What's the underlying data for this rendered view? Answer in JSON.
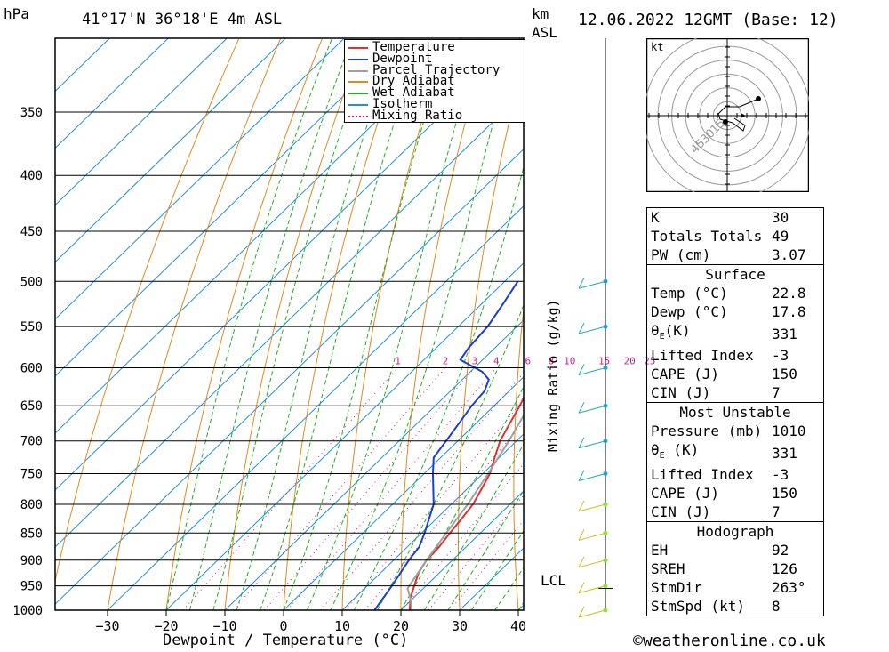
{
  "header": {
    "hpa_label": "hPa",
    "location": "41°17'N 36°18'E 4m ASL",
    "km_label": "km",
    "asl_label": "ASL",
    "datetime": "12.06.2022 12GMT (Base: 12)"
  },
  "footer": {
    "xlabel": "Dewpoint / Temperature (°C)",
    "copyright": "©weatheronline.co.uk",
    "lcl_label": "LCL",
    "mixing_ratio_axis": "Mixing Ratio (g/kg)"
  },
  "chart_data": {
    "type": "line",
    "title": "Skew-T log-P diagram",
    "xlabel": "Dewpoint / Temperature (°C)",
    "ylabel": "hPa",
    "pressure_levels": [
      350,
      400,
      450,
      500,
      550,
      600,
      650,
      700,
      750,
      800,
      850,
      900,
      950,
      1000
    ],
    "x_ticks": [
      -30,
      -20,
      -10,
      0,
      10,
      20,
      30,
      40
    ],
    "legend": [
      {
        "name": "Temperature",
        "color": "#e03030",
        "style": "solid"
      },
      {
        "name": "Dewpoint",
        "color": "#1a3fd0",
        "style": "solid"
      },
      {
        "name": "Parcel Trajectory",
        "color": "#a0a0a0",
        "style": "solid"
      },
      {
        "name": "Dry Adiabat",
        "color": "#e08a20",
        "style": "solid"
      },
      {
        "name": "Wet Adiabat",
        "color": "#20b020",
        "style": "solid"
      },
      {
        "name": "Isotherm",
        "color": "#2090e0",
        "style": "solid"
      },
      {
        "name": "Mixing Ratio",
        "color": "#d02090",
        "style": "dotted"
      }
    ],
    "mixing_ratio_labels": [
      "1",
      "2",
      "3",
      "4",
      "6",
      "8",
      "10",
      "15",
      "20",
      "25"
    ],
    "mixing_ratio_values": [
      1,
      2,
      3,
      4,
      6,
      8,
      10,
      15,
      20,
      25
    ],
    "series": [
      {
        "name": "Temperature",
        "points": [
          [
            1010,
            22.8
          ],
          [
            1000,
            21.5
          ],
          [
            975,
            19.5
          ],
          [
            950,
            18.0
          ],
          [
            925,
            16.5
          ],
          [
            900,
            15.6
          ],
          [
            875,
            15.4
          ],
          [
            850,
            14.8
          ],
          [
            825,
            14.3
          ],
          [
            800,
            13.7
          ],
          [
            775,
            12.5
          ],
          [
            750,
            11.2
          ],
          [
            725,
            9.2
          ],
          [
            700,
            7.2
          ],
          [
            675,
            5.8
          ],
          [
            650,
            4.4
          ],
          [
            630,
            3.0
          ],
          [
            620,
            2.4
          ],
          [
            610,
            4.5
          ],
          [
            600,
            3.5
          ],
          [
            575,
            0.8
          ],
          [
            550,
            -2.2
          ],
          [
            525,
            -5.5
          ],
          [
            500,
            -9.0
          ]
        ]
      },
      {
        "name": "Dewpoint",
        "points": [
          [
            1010,
            17.8
          ],
          [
            1000,
            15.5
          ],
          [
            950,
            14.2
          ],
          [
            900,
            12.6
          ],
          [
            875,
            12.0
          ],
          [
            850,
            10.5
          ],
          [
            800,
            7.0
          ],
          [
            775,
            4.3
          ],
          [
            750,
            1.5
          ],
          [
            725,
            -1.2
          ],
          [
            700,
            -2.0
          ],
          [
            650,
            -3.8
          ],
          [
            630,
            -4.2
          ],
          [
            615,
            -5.5
          ],
          [
            605,
            -8.0
          ],
          [
            590,
            -13.8
          ],
          [
            575,
            -14.5
          ],
          [
            550,
            -15.0
          ],
          [
            525,
            -16.3
          ],
          [
            500,
            -17.8
          ]
        ]
      },
      {
        "name": "Parcel Trajectory",
        "points": [
          [
            1010,
            22.8
          ],
          [
            975,
            19.5
          ],
          [
            955,
            17.3
          ],
          [
            900,
            15.6
          ],
          [
            850,
            14.2
          ],
          [
            800,
            12.8
          ],
          [
            750,
            10.9
          ],
          [
            700,
            8.7
          ],
          [
            650,
            6.0
          ],
          [
            600,
            2.8
          ],
          [
            550,
            -1.2
          ],
          [
            500,
            -6.0
          ],
          [
            450,
            -11.6
          ],
          [
            400,
            -18.6
          ],
          [
            350,
            -27.0
          ],
          [
            320,
            -32.5
          ]
        ]
      }
    ],
    "lcl_pressure_hpa": 955,
    "wind_barbs_pressure_hpa": [
      500,
      550,
      600,
      650,
      700,
      750,
      800,
      850,
      900,
      950,
      1000
    ],
    "indices": {
      "K": "30",
      "Totals Totals": "49",
      "PW (cm)": "3.07"
    },
    "surface": {
      "title": "Surface",
      "Temp (°C)": "22.8",
      "Dewp (°C)": "17.8",
      "θE(K)": "331",
      "Lifted Index": "-3",
      "CAPE (J)": "150",
      "CIN (J)": "7"
    },
    "most_unstable": {
      "title": "Most Unstable",
      "Pressure (mb)": "1010",
      "θE (K)": "331",
      "Lifted Index": "-3",
      "CAPE (J)": "150",
      "CIN (J)": "7"
    },
    "hodograph": {
      "title": "Hodograph",
      "unit_label": "kt",
      "ring_labels": [
        "15",
        "30",
        "45"
      ],
      "EH": "92",
      "SREH": "126",
      "StmDir": "263°",
      "StmSpd (kt)": "8"
    }
  }
}
